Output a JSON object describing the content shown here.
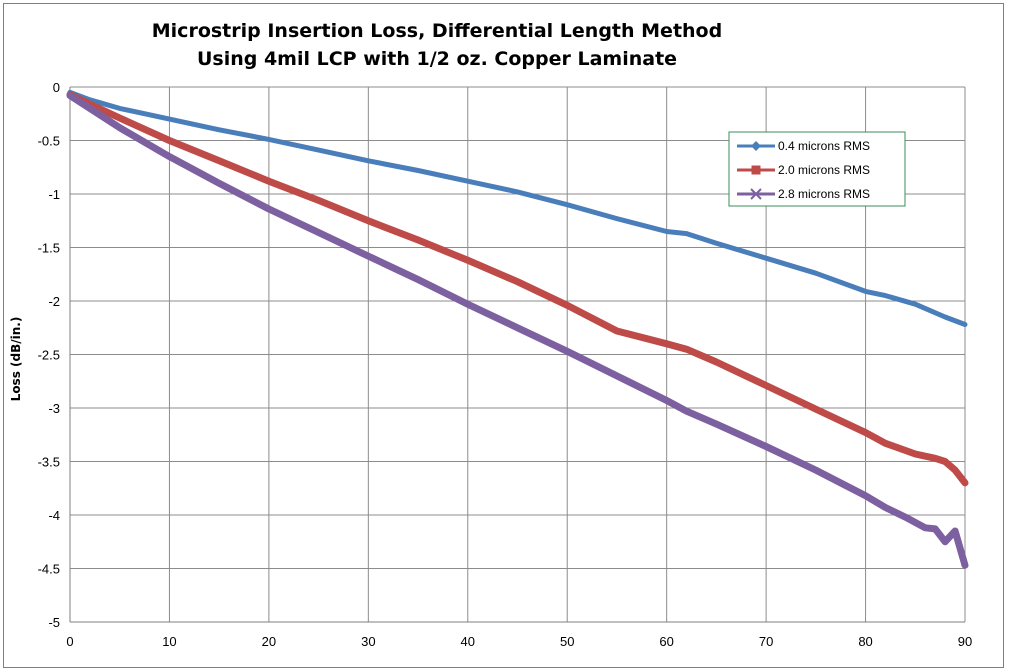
{
  "chart_data": {
    "type": "line",
    "title": "Microstrip Insertion Loss, Differential Length Method",
    "subtitle": "Using 4mil LCP with 1/2 oz. Copper Laminate",
    "xlabel": "",
    "ylabel": "Loss (dB/in.)",
    "xlim": [
      0,
      90
    ],
    "ylim": [
      -5,
      0
    ],
    "x_ticks": [
      0,
      10,
      20,
      30,
      40,
      50,
      60,
      70,
      80,
      90
    ],
    "y_ticks": [
      0,
      -0.5,
      -1,
      -1.5,
      -2,
      -2.5,
      -3,
      -3.5,
      -4,
      -4.5,
      -5
    ],
    "y_tick_labels": [
      "0",
      "-0.5",
      "-1",
      "-1.5",
      "-2",
      "-2.5",
      "-3",
      "-3.5",
      "-4",
      "-4.5",
      "-5"
    ],
    "grid": true,
    "legend_position": "top-right",
    "series": [
      {
        "name": "0.4 microns RMS",
        "color": "#4a7ebb",
        "marker": "diamond",
        "x": [
          0,
          2,
          5,
          10,
          15,
          20,
          25,
          30,
          35,
          40,
          45,
          50,
          55,
          60,
          62,
          65,
          70,
          75,
          80,
          82,
          85,
          88,
          90
        ],
        "y": [
          -0.05,
          -0.12,
          -0.2,
          -0.3,
          -0.4,
          -0.49,
          -0.59,
          -0.69,
          -0.78,
          -0.88,
          -0.98,
          -1.1,
          -1.23,
          -1.35,
          -1.37,
          -1.46,
          -1.6,
          -1.74,
          -1.91,
          -1.95,
          -2.03,
          -2.15,
          -2.22
        ]
      },
      {
        "name": "2.0 microns RMS",
        "color": "#be4b48",
        "marker": "square",
        "x": [
          0,
          2,
          5,
          10,
          15,
          20,
          25,
          30,
          35,
          40,
          45,
          50,
          55,
          60,
          62,
          65,
          70,
          75,
          80,
          82,
          85,
          87,
          88,
          89,
          90
        ],
        "y": [
          -0.07,
          -0.16,
          -0.29,
          -0.5,
          -0.69,
          -0.88,
          -1.06,
          -1.25,
          -1.43,
          -1.62,
          -1.82,
          -2.04,
          -2.28,
          -2.4,
          -2.45,
          -2.57,
          -2.79,
          -3.01,
          -3.23,
          -3.33,
          -3.43,
          -3.47,
          -3.5,
          -3.58,
          -3.7
        ]
      },
      {
        "name": "2.8 microns RMS",
        "color": "#7d60a0",
        "marker": "x",
        "x": [
          0,
          2,
          5,
          10,
          15,
          20,
          25,
          30,
          35,
          40,
          45,
          50,
          55,
          60,
          62,
          65,
          70,
          75,
          80,
          82,
          84,
          86,
          87,
          88,
          89,
          90
        ],
        "y": [
          -0.08,
          -0.2,
          -0.38,
          -0.65,
          -0.9,
          -1.14,
          -1.36,
          -1.58,
          -1.8,
          -2.03,
          -2.25,
          -2.47,
          -2.7,
          -2.93,
          -3.03,
          -3.15,
          -3.36,
          -3.58,
          -3.82,
          -3.93,
          -4.02,
          -4.12,
          -4.13,
          -4.25,
          -4.15,
          -4.47
        ]
      }
    ]
  }
}
